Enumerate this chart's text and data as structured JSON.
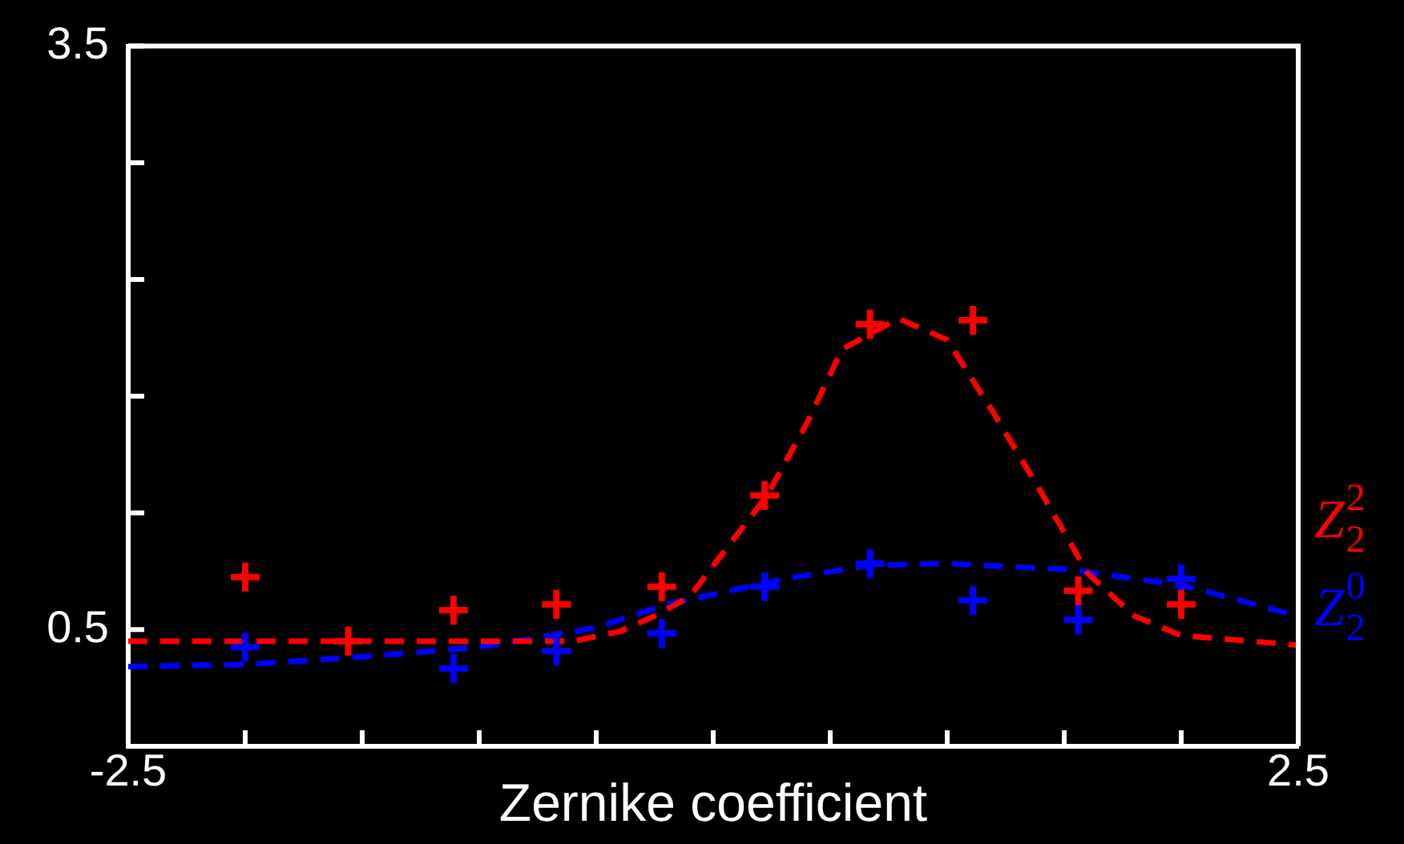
{
  "chart_data": {
    "type": "scatter",
    "xlabel": "Zernike coefficient",
    "xlim": [
      -2.5,
      2.5
    ],
    "xticks": [
      -2.5,
      {
        "value": -2,
        "label": null
      },
      {
        "value": -1.5,
        "label": null
      },
      {
        "value": -1,
        "label": null
      },
      {
        "value": -0.5,
        "label": null
      },
      {
        "value": 0,
        "label": null
      },
      {
        "value": 0.5,
        "label": null
      },
      {
        "value": 1,
        "label": null
      },
      {
        "value": 1.5,
        "label": null
      },
      {
        "value": 2,
        "label": null
      },
      2.5
    ],
    "ylim": [
      -0.1,
      3.5
    ],
    "yticks": [
      {
        "value": -0.1,
        "label": null
      },
      0.5,
      {
        "value": 1.1,
        "label": null
      },
      {
        "value": 1.7,
        "label": null
      },
      {
        "value": 2.3,
        "label": null
      },
      {
        "value": 2.9,
        "label": null
      },
      3.5
    ],
    "grid": false,
    "legend": false,
    "series": [
      {
        "type": "scatter",
        "color": "#ff0000",
        "marker": "cross",
        "x": [
          -2,
          -1.56,
          -1.11,
          -0.67,
          -0.22,
          0.22,
          0.67,
          1.11,
          1.56,
          2
        ],
        "values": [
          0.77,
          0.44,
          0.6,
          0.63,
          0.72,
          1.19,
          2.07,
          2.09,
          0.7,
          0.63
        ]
      },
      {
        "type": "scatter",
        "color": "#0000ff",
        "marker": "cross",
        "x": [
          -2,
          -1.56,
          -1.11,
          -0.67,
          -0.22,
          0.22,
          0.67,
          1.11,
          1.56,
          2
        ],
        "values": [
          0.41,
          null,
          0.3,
          0.39,
          0.48,
          0.72,
          0.84,
          0.65,
          0.55,
          0.76
        ]
      },
      {
        "type": "line",
        "name": "Z$_{2}$$^{2}$",
        "color": "#ff0000",
        "marker": "none",
        "line_style": "dashed",
        "x": [
          -2.5,
          -1,
          -0.6,
          -0.4,
          -0.25,
          -0.1,
          0.23,
          0.4,
          0.55,
          0.79,
          1,
          1.2,
          1.4,
          1.6,
          1.8,
          2,
          2.5
        ],
        "values": [
          0.44,
          0.44,
          0.44,
          0.49,
          0.57,
          0.67,
          1.19,
          1.56,
          1.94,
          2.1,
          1.99,
          1.61,
          1.21,
          0.79,
          0.57,
          0.47,
          0.42
        ]
      },
      {
        "type": "line",
        "name": "Z$_{2}$$^{0}$",
        "color": "#0000ff",
        "marker": "none",
        "line_style": "dashed",
        "x": [
          -2.5,
          -2,
          -1.5,
          -1,
          -0.5,
          -0.2,
          0,
          0.3,
          0.67,
          1,
          1.5,
          2,
          2.5
        ],
        "values": [
          0.31,
          0.32,
          0.36,
          0.41,
          0.51,
          0.63,
          0.68,
          0.76,
          0.83,
          0.84,
          0.81,
          0.73,
          0.57
        ]
      }
    ]
  }
}
